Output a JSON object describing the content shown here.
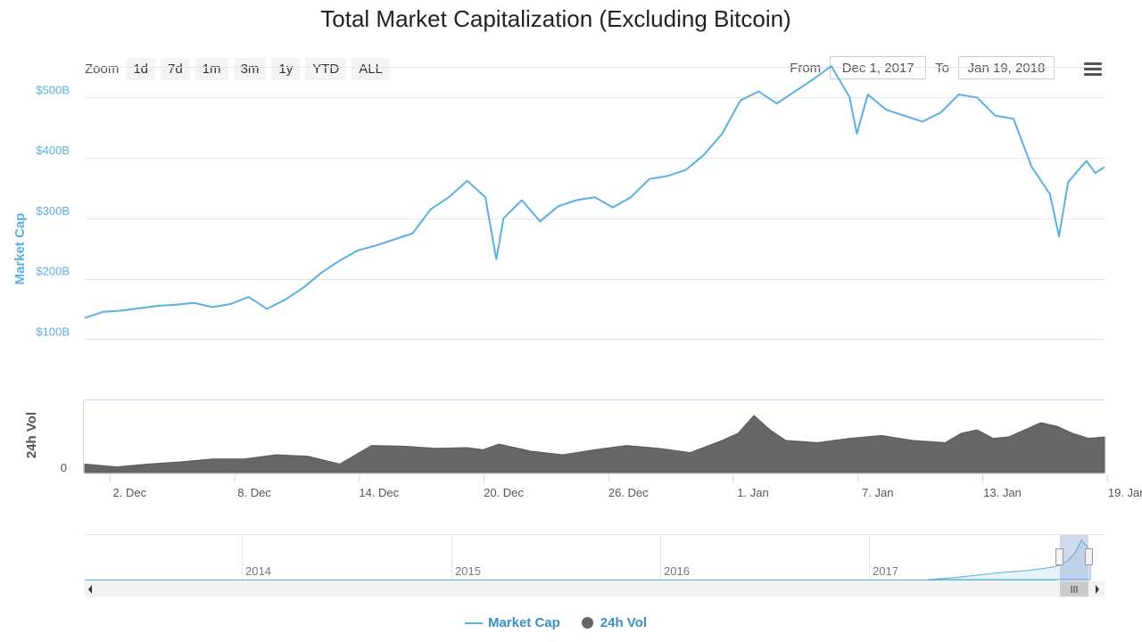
{
  "title": "Total Market Capitalization (Excluding Bitcoin)",
  "toolbar": {
    "zoom_label": "Zoom",
    "buttons": [
      "1d",
      "7d",
      "1m",
      "3m",
      "1y",
      "YTD",
      "ALL"
    ],
    "from_label": "From",
    "from_value": "Dec 1, 2017",
    "to_label": "To",
    "to_value": "Jan 19, 2018"
  },
  "legend": {
    "market_cap": "Market Cap",
    "volume": "24h Vol"
  },
  "colors": {
    "market_cap": "#5ab0e0",
    "volume": "#666666",
    "grid": "#e6e6e6",
    "navigator_mask": "rgba(102,133,194,0.3)"
  },
  "chart_data": {
    "type": "line",
    "x_start": "Dec 1, 2017",
    "x_end": "Jan 19, 2018",
    "x_ticks": [
      {
        "day": 1,
        "label": "2. Dec"
      },
      {
        "day": 7,
        "label": "8. Dec"
      },
      {
        "day": 13,
        "label": "14. Dec"
      },
      {
        "day": 19,
        "label": "20. Dec"
      },
      {
        "day": 25,
        "label": "26. Dec"
      },
      {
        "day": 31,
        "label": "1. Jan"
      },
      {
        "day": 37,
        "label": "7. Jan"
      },
      {
        "day": 43,
        "label": "13. Jan"
      },
      {
        "day": 49,
        "label": "19. Jan"
      }
    ],
    "y_axis": {
      "label": "Market Cap",
      "ticks": [
        {
          "value": 100,
          "label": "$100B"
        },
        {
          "value": 200,
          "label": "$200B"
        },
        {
          "value": 300,
          "label": "$300B"
        },
        {
          "value": 400,
          "label": "$400B"
        },
        {
          "value": 500,
          "label": "$500B"
        }
      ]
    },
    "volume_axis": {
      "label": "24h Vol",
      "ticks": [
        {
          "value": 0,
          "label": "0"
        }
      ]
    },
    "series": [
      {
        "name": "Market Cap",
        "unit": "B USD",
        "points": [
          [
            0,
            135
          ],
          [
            1,
            145
          ],
          [
            2,
            147
          ],
          [
            3,
            151
          ],
          [
            4,
            155
          ],
          [
            5,
            157
          ],
          [
            6,
            160
          ],
          [
            7,
            153
          ],
          [
            8,
            158
          ],
          [
            9,
            170
          ],
          [
            10,
            150
          ],
          [
            11,
            165
          ],
          [
            12,
            185
          ],
          [
            13,
            210
          ],
          [
            14,
            230
          ],
          [
            15,
            247
          ],
          [
            16,
            255
          ],
          [
            17,
            265
          ],
          [
            18,
            275
          ],
          [
            19,
            315
          ],
          [
            20,
            335
          ],
          [
            21,
            362
          ],
          [
            22,
            335
          ],
          [
            22.6,
            232
          ],
          [
            23,
            300
          ],
          [
            24,
            330
          ],
          [
            25,
            295
          ],
          [
            26,
            320
          ],
          [
            27,
            330
          ],
          [
            28,
            335
          ],
          [
            29,
            318
          ],
          [
            30,
            335
          ],
          [
            31,
            365
          ],
          [
            32,
            370
          ],
          [
            33,
            380
          ],
          [
            34,
            405
          ],
          [
            35,
            440
          ],
          [
            36,
            495
          ],
          [
            37,
            510
          ],
          [
            38,
            490
          ],
          [
            39,
            510
          ],
          [
            40,
            530
          ],
          [
            41,
            552
          ],
          [
            42,
            500
          ],
          [
            42.4,
            440
          ],
          [
            43,
            505
          ],
          [
            44,
            480
          ],
          [
            45,
            470
          ],
          [
            46,
            460
          ],
          [
            47,
            475
          ],
          [
            48,
            505
          ],
          [
            49,
            500
          ],
          [
            50,
            470
          ],
          [
            51,
            465
          ],
          [
            52,
            385
          ],
          [
            53,
            340
          ],
          [
            53.5,
            270
          ],
          [
            54,
            360
          ],
          [
            55,
            395
          ],
          [
            55.5,
            375
          ],
          [
            56,
            385
          ]
        ]
      },
      {
        "name": "24h Vol",
        "points": [
          [
            0,
            12
          ],
          [
            2,
            8
          ],
          [
            4,
            12
          ],
          [
            6,
            15
          ],
          [
            8,
            19
          ],
          [
            10,
            19
          ],
          [
            12,
            25
          ],
          [
            14,
            23
          ],
          [
            16,
            12
          ],
          [
            18,
            38
          ],
          [
            20,
            37
          ],
          [
            22,
            34
          ],
          [
            24,
            35
          ],
          [
            25,
            32
          ],
          [
            26,
            40
          ],
          [
            28,
            30
          ],
          [
            30,
            25
          ],
          [
            32,
            32
          ],
          [
            34,
            38
          ],
          [
            36,
            34
          ],
          [
            38,
            28
          ],
          [
            40,
            45
          ],
          [
            41,
            55
          ],
          [
            42,
            80
          ],
          [
            43,
            60
          ],
          [
            44,
            45
          ],
          [
            46,
            42
          ],
          [
            48,
            48
          ],
          [
            50,
            52
          ],
          [
            52,
            45
          ],
          [
            54,
            42
          ],
          [
            55,
            55
          ],
          [
            56,
            60
          ],
          [
            57,
            48
          ],
          [
            58,
            50
          ],
          [
            59,
            60
          ],
          [
            60,
            70
          ],
          [
            61,
            65
          ],
          [
            62,
            55
          ],
          [
            63,
            48
          ],
          [
            64,
            50
          ]
        ]
      }
    ],
    "navigator": {
      "year_labels": [
        "2014",
        "2015",
        "2016",
        "2017"
      ]
    }
  }
}
